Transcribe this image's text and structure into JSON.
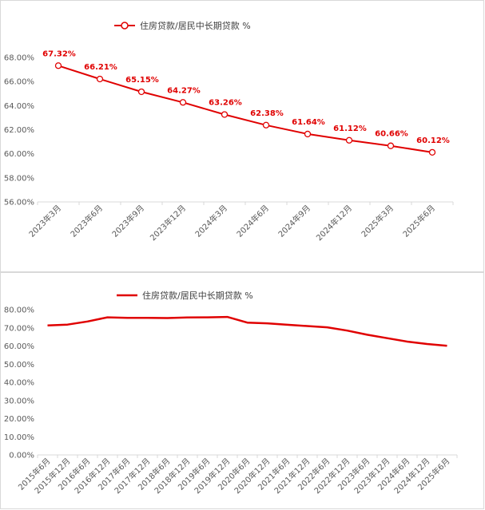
{
  "colors": {
    "series": "#e00000",
    "grid": "#d9d9d9",
    "axis_text": "#595959"
  },
  "chart_data": [
    {
      "type": "line",
      "legend": "住房贷款/居民中长期贷款 %",
      "legend_position": "top",
      "markers": true,
      "grid": false,
      "x": [
        "2023年3月",
        "2023年6月",
        "2023年9月",
        "2023年12月",
        "2024年3月",
        "2024年6月",
        "2024年9月",
        "2024年12月",
        "2025年3月",
        "2025年6月"
      ],
      "series": [
        {
          "name": "住房贷款/居民中长期贷款 %",
          "values": [
            67.32,
            66.21,
            65.15,
            64.27,
            63.26,
            62.38,
            61.64,
            61.12,
            60.66,
            60.12
          ]
        }
      ],
      "data_labels": [
        "67.32%",
        "66.21%",
        "65.15%",
        "64.27%",
        "63.26%",
        "62.38%",
        "61.64%",
        "61.12%",
        "60.66%",
        "60.12%"
      ],
      "ylim": [
        56,
        68
      ],
      "yticks": [
        "56.00%",
        "58.00%",
        "60.00%",
        "62.00%",
        "64.00%",
        "66.00%",
        "68.00%"
      ]
    },
    {
      "type": "line",
      "legend": "住房贷款/居民中长期贷款 %",
      "legend_position": "top",
      "markers": false,
      "grid": false,
      "x": [
        "2015年6月",
        "2015年12月",
        "2016年6月",
        "2016年12月",
        "2017年6月",
        "2017年12月",
        "2018年6月",
        "2018年12月",
        "2019年6月",
        "2019年12月",
        "2020年6月",
        "2020年12月",
        "2021年6月",
        "2021年12月",
        "2022年6月",
        "2022年12月",
        "2023年6月",
        "2023年12月",
        "2024年6月",
        "2024年12月",
        "2025年6月"
      ],
      "series": [
        {
          "name": "住房贷款/居民中长期贷款 %",
          "values": [
            71.3,
            71.8,
            73.5,
            75.8,
            75.5,
            75.5,
            75.4,
            75.7,
            75.8,
            76.0,
            72.9,
            72.5,
            71.7,
            71.0,
            70.3,
            68.5,
            66.2,
            64.3,
            62.4,
            61.1,
            60.1
          ]
        }
      ],
      "ylim": [
        0,
        80
      ],
      "yticks": [
        "0.00%",
        "10.00%",
        "20.00%",
        "30.00%",
        "40.00%",
        "50.00%",
        "60.00%",
        "70.00%",
        "80.00%"
      ]
    }
  ]
}
